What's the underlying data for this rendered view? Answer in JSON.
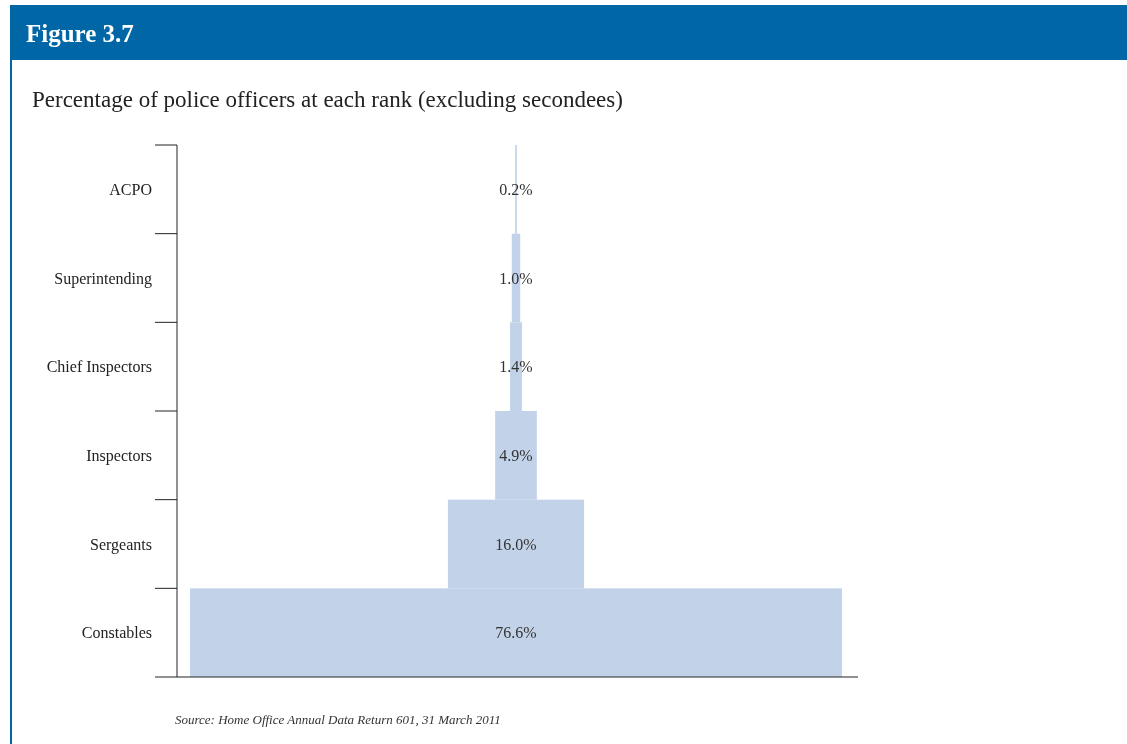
{
  "chart_data": {
    "type": "other",
    "title": "Figure 3.7",
    "subtitle": "Percentage of police officers at each rank (excluding secondees)",
    "categories": [
      "ACPO",
      "Superintending",
      "Chief Inspectors",
      "Inspectors",
      "Sergeants",
      "Constables"
    ],
    "values": [
      0.2,
      1.0,
      1.4,
      4.9,
      16.0,
      76.6
    ],
    "value_labels": [
      "0.2%",
      "1.0%",
      "1.4%",
      "4.9%",
      "16.0%",
      "76.6%"
    ],
    "color": "#c2d3e9",
    "annotations": [
      "Source: Home Office Annual Data Return 601, 31 March 2011"
    ]
  }
}
